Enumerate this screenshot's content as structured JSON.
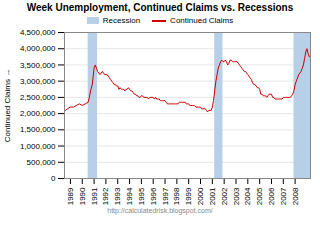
{
  "chart_data": {
    "type": "line",
    "title": "Week Unemployment, Continued Claims vs. Recessions",
    "ylabel": "Continued Claims",
    "annotations": [
      "http://calculatedrisk.blogspot.com/"
    ],
    "legend": "top",
    "grid": "y",
    "xlim": [
      1988.5,
      2009.3
    ],
    "xticks": [
      1989,
      1990,
      1991,
      1992,
      1993,
      1994,
      1995,
      1996,
      1997,
      1998,
      1999,
      2000,
      2001,
      2002,
      2003,
      2004,
      2005,
      2006,
      2007,
      2008
    ],
    "ylim": [
      0,
      4500000
    ],
    "yticks": [
      0,
      {
        "value": 500000,
        "label": "500,000"
      },
      {
        "value": 1000000,
        "label": "1,000,000"
      },
      {
        "value": 1500000,
        "label": "1,500,000"
      },
      {
        "value": 2000000,
        "label": "2,000,000"
      },
      {
        "value": 2500000,
        "label": "2,500,000"
      },
      {
        "value": 3000000,
        "label": "3,000,000"
      },
      {
        "value": 3500000,
        "label": "3,500,000"
      },
      {
        "value": 4000000,
        "label": "4,000,000"
      },
      {
        "value": 4500000,
        "label": "4,500,000"
      }
    ],
    "bands": [
      {
        "name": "Recession",
        "color": "#b8cfe8",
        "ranges": [
          [
            1990.5,
            1991.3
          ],
          [
            2001.2,
            2001.9
          ],
          [
            2007.9,
            2009.3
          ]
        ]
      }
    ],
    "series": [
      {
        "name": "Continued Claims",
        "color": "#cc0000",
        "x": [
          1988.58,
          1988.75,
          1989.0,
          1989.25,
          1989.5,
          1989.75,
          1990.0,
          1990.25,
          1990.5,
          1990.6,
          1990.7,
          1990.85,
          1991.0,
          1991.1,
          1991.2,
          1991.3,
          1991.4,
          1991.5,
          1991.6,
          1991.7,
          1991.8,
          1991.9,
          1992.0,
          1992.1,
          1992.2,
          1992.3,
          1992.4,
          1992.5,
          1992.6,
          1992.7,
          1992.8,
          1992.9,
          1993.0,
          1993.1,
          1993.2,
          1993.3,
          1993.4,
          1993.5,
          1993.6,
          1993.7,
          1993.8,
          1993.9,
          1994.0,
          1994.1,
          1994.2,
          1994.3,
          1994.4,
          1994.5,
          1994.6,
          1994.7,
          1994.8,
          1994.9,
          1995.0,
          1995.1,
          1995.2,
          1995.3,
          1995.4,
          1995.5,
          1995.6,
          1995.7,
          1995.8,
          1995.9,
          1996.0,
          1996.1,
          1996.2,
          1996.3,
          1996.4,
          1996.5,
          1996.6,
          1996.7,
          1996.8,
          1996.9,
          1997.0,
          1997.1,
          1997.2,
          1997.3,
          1997.4,
          1997.5,
          1997.6,
          1997.7,
          1997.8,
          1997.9,
          1998.0,
          1998.1,
          1998.2,
          1998.3,
          1998.4,
          1998.5,
          1998.6,
          1998.7,
          1998.8,
          1998.9,
          1999.0,
          1999.1,
          1999.2,
          1999.3,
          1999.4,
          1999.5,
          1999.6,
          1999.7,
          1999.8,
          1999.9,
          2000.0,
          2000.1,
          2000.2,
          2000.3,
          2000.4,
          2000.5,
          2000.6,
          2000.7,
          2000.8,
          2000.9,
          2001.0,
          2001.1,
          2001.2,
          2001.3,
          2001.4,
          2001.5,
          2001.6,
          2001.7,
          2001.8,
          2001.9,
          2002.0,
          2002.1,
          2002.2,
          2002.3,
          2002.4,
          2002.5,
          2002.6,
          2002.7,
          2002.8,
          2002.9,
          2003.0,
          2003.1,
          2003.2,
          2003.3,
          2003.4,
          2003.5,
          2003.6,
          2003.7,
          2003.8,
          2003.9,
          2004.0,
          2004.1,
          2004.2,
          2004.3,
          2004.4,
          2004.5,
          2004.6,
          2004.7,
          2004.8,
          2004.9,
          2005.0,
          2005.1,
          2005.2,
          2005.3,
          2005.4,
          2005.5,
          2005.6,
          2005.7,
          2005.8,
          2005.9,
          2006.0,
          2006.1,
          2006.2,
          2006.3,
          2006.4,
          2006.5,
          2006.6,
          2006.7,
          2006.8,
          2006.9,
          2007.0,
          2007.1,
          2007.2,
          2007.3,
          2007.4,
          2007.5,
          2007.6,
          2007.7,
          2007.8,
          2007.9,
          2008.0,
          2008.1,
          2008.2,
          2008.3,
          2008.4,
          2008.5,
          2008.6,
          2008.7,
          2008.8,
          2008.9,
          2009.0,
          2009.1,
          2009.2
        ],
        "values": [
          2100000,
          2150000,
          2200000,
          2200000,
          2250000,
          2300000,
          2250000,
          2300000,
          2350000,
          2500000,
          2700000,
          2900000,
          3400000,
          3500000,
          3400000,
          3300000,
          3250000,
          3200000,
          3250000,
          3300000,
          3250000,
          3200000,
          3200000,
          3200000,
          3150000,
          3100000,
          3050000,
          3000000,
          2950000,
          2900000,
          2900000,
          2850000,
          2850000,
          2750000,
          2800000,
          2750000,
          2750000,
          2750000,
          2700000,
          2750000,
          2750000,
          2800000,
          2750000,
          2700000,
          2700000,
          2650000,
          2600000,
          2600000,
          2550000,
          2550000,
          2500000,
          2500000,
          2550000,
          2550000,
          2500000,
          2500000,
          2500000,
          2500000,
          2450000,
          2500000,
          2500000,
          2500000,
          2500000,
          2450000,
          2500000,
          2450000,
          2450000,
          2450000,
          2400000,
          2400000,
          2400000,
          2400000,
          2400000,
          2350000,
          2300000,
          2300000,
          2300000,
          2300000,
          2300000,
          2300000,
          2300000,
          2300000,
          2300000,
          2300000,
          2350000,
          2350000,
          2350000,
          2350000,
          2350000,
          2350000,
          2300000,
          2300000,
          2300000,
          2250000,
          2250000,
          2250000,
          2250000,
          2250000,
          2200000,
          2200000,
          2200000,
          2200000,
          2200000,
          2150000,
          2150000,
          2150000,
          2150000,
          2100000,
          2050000,
          2100000,
          2100000,
          2100000,
          2200000,
          2400000,
          2700000,
          3000000,
          3200000,
          3400000,
          3500000,
          3600000,
          3650000,
          3600000,
          3600000,
          3650000,
          3600000,
          3500000,
          3550000,
          3650000,
          3650000,
          3600000,
          3600000,
          3600000,
          3600000,
          3600000,
          3550000,
          3500000,
          3450000,
          3400000,
          3350000,
          3300000,
          3300000,
          3250000,
          3200000,
          3150000,
          3100000,
          3050000,
          2950000,
          2900000,
          2900000,
          2850000,
          2800000,
          2800000,
          2750000,
          2600000,
          2600000,
          2550000,
          2550000,
          2550000,
          2500000,
          2550000,
          2600000,
          2600000,
          2600000,
          2500000,
          2500000,
          2450000,
          2450000,
          2450000,
          2450000,
          2450000,
          2450000,
          2450000,
          2500000,
          2500000,
          2500000,
          2500000,
          2500000,
          2500000,
          2500000,
          2550000,
          2600000,
          2700000,
          2900000,
          3000000,
          3100000,
          3200000,
          3250000,
          3300000,
          3400000,
          3500000,
          3700000,
          3900000,
          4000000,
          3850000,
          3750000
        ]
      }
    ]
  }
}
